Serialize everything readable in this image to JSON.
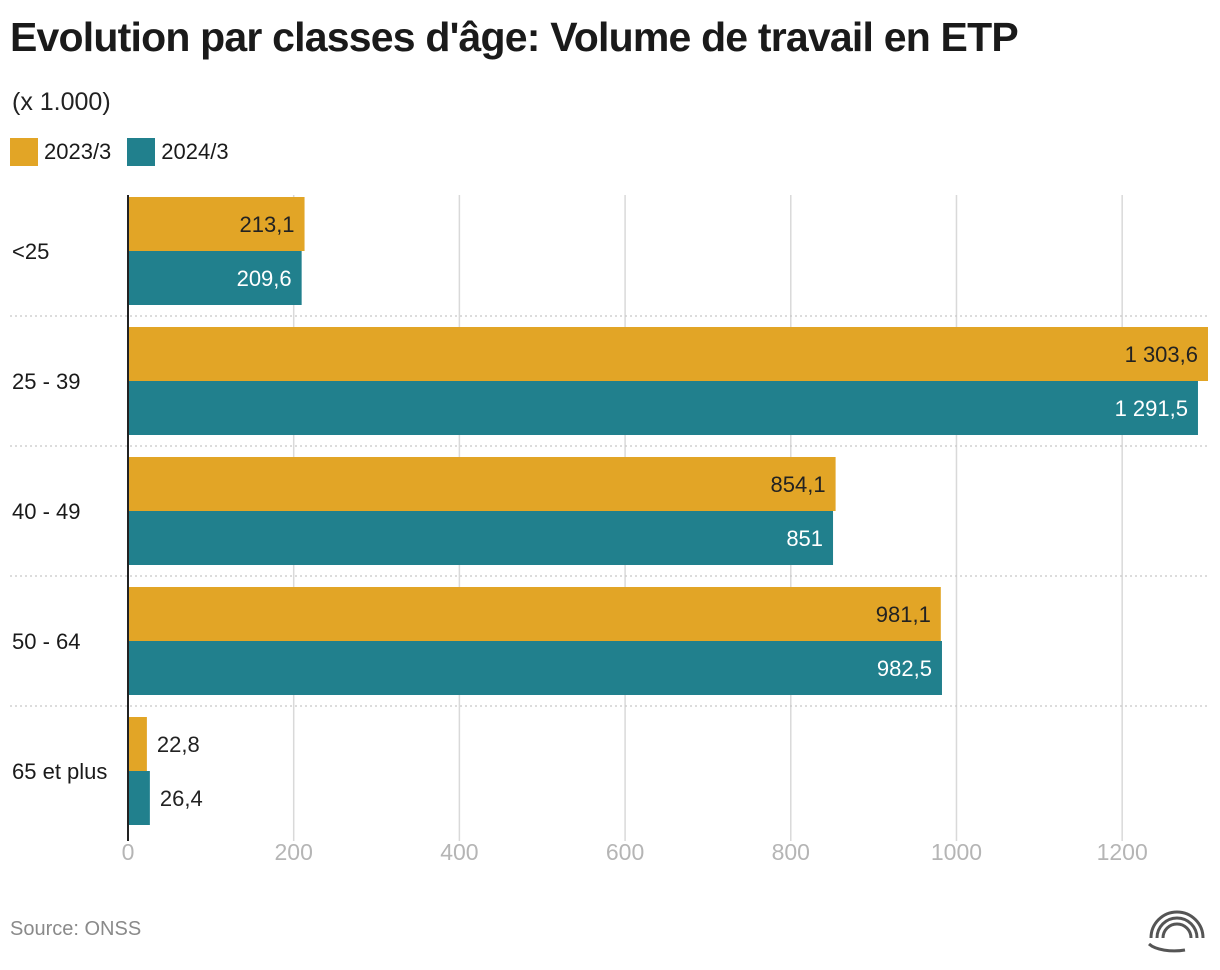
{
  "title": "Evolution par classes d'âge: Volume de travail en ETP",
  "subtitle": "(x 1.000)",
  "source": "Source: ONSS",
  "colors": {
    "series_2023": "#e2a526",
    "series_2024": "#21808d",
    "grid": "#d9d9d9",
    "axis": "#222222",
    "tick": "#b5b5b5"
  },
  "chart_data": {
    "type": "bar",
    "orientation": "horizontal",
    "categories": [
      "<25",
      "25 - 39",
      "40 - 49",
      "50 - 64",
      "65 et plus"
    ],
    "series": [
      {
        "name": "2023/3",
        "values": [
          213.1,
          1303.6,
          854.1,
          981.1,
          22.8
        ],
        "labels": [
          "213,1",
          "1 303,6",
          "854,1",
          "981,1",
          "22,8"
        ]
      },
      {
        "name": "2024/3",
        "values": [
          209.6,
          1291.5,
          851,
          982.5,
          26.4
        ],
        "labels": [
          "209,6",
          "1 291,5",
          "851",
          "982,5",
          "26,4"
        ]
      }
    ],
    "xticks": [
      0,
      200,
      400,
      600,
      800,
      1000,
      1200
    ],
    "xtick_labels": [
      "0",
      "200",
      "400",
      "600",
      "800",
      "1000",
      "1200"
    ],
    "xlim": [
      0,
      1303.6
    ],
    "title": "Evolution par classes d'âge: Volume de travail en ETP",
    "xlabel": "",
    "ylabel": "",
    "legend": "top-left",
    "grid": true
  }
}
